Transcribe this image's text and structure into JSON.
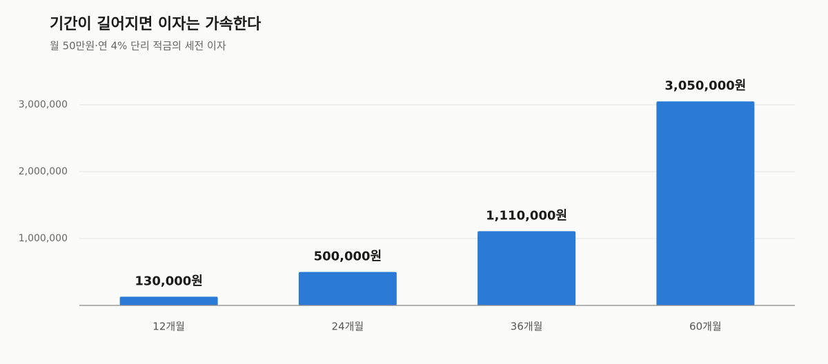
{
  "chart_data": {
    "type": "bar",
    "title": "기간이 길어지면 이자는 가속한다",
    "subtitle": "월 50만원·연 4% 단리 적금의 세전 이자",
    "categories": [
      "12개월",
      "24개월",
      "36개월",
      "60개월"
    ],
    "values": [
      130000,
      500000,
      1110000,
      3050000
    ],
    "value_labels": [
      "130,000원",
      "500,000원",
      "1,110,000원",
      "3,050,000원"
    ],
    "color": "#2b7bd6",
    "ylim": [
      0,
      3200000
    ],
    "yticks": [
      {
        "value": 1000000,
        "label": "1,000,000"
      },
      {
        "value": 2000000,
        "label": "2,000,000"
      },
      {
        "value": 3000000,
        "label": "3,000,000"
      }
    ],
    "grid": true
  }
}
